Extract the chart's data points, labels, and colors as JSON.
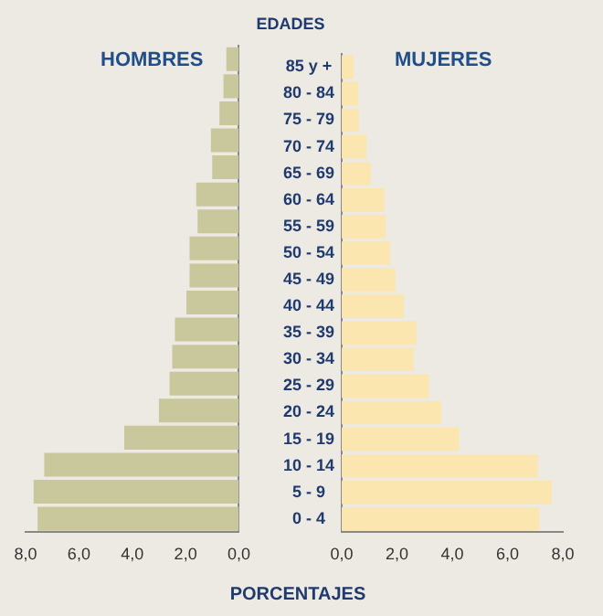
{
  "chart_data": [
    {
      "type": "bar",
      "orientation": "horizontal",
      "title": "HOMBRES",
      "xlabel": "PORCENTAJES",
      "categories": [
        null,
        null,
        null,
        null,
        null,
        null,
        null,
        null,
        null,
        null,
        null,
        null,
        null,
        null,
        null,
        null,
        null,
        null
      ],
      "values": [
        0.47,
        0.58,
        0.73,
        1.05,
        1.0,
        1.6,
        1.55,
        1.85,
        1.85,
        1.97,
        2.4,
        2.5,
        2.6,
        3.0,
        4.3,
        7.3,
        7.7,
        7.55
      ],
      "color": "#c9c89c",
      "xlim": [
        8,
        0
      ],
      "xticks": [
        {
          "value": 8,
          "label": "8,0"
        },
        {
          "value": 6,
          "label": "6,0"
        },
        {
          "value": 4,
          "label": "4,0"
        },
        {
          "value": 2,
          "label": "2,0"
        },
        {
          "value": 0,
          "label": "0,0"
        }
      ],
      "tick_labels": "x",
      "grid": false
    },
    {
      "type": "bar",
      "orientation": "horizontal",
      "title": "MUJERES",
      "ylabel": "EDADES",
      "categories": [
        "85 y +",
        "80 - 84",
        "75 - 79",
        "70 - 74",
        "65 - 69",
        "60 - 64",
        "55 - 59",
        "50 - 54",
        "45 - 49",
        "40 - 44",
        "35 - 39",
        "30 - 34",
        "25 - 29",
        "20 - 24",
        "15 - 19",
        "10 - 14",
        "5 - 9",
        "0 - 4"
      ],
      "values": [
        0.43,
        0.6,
        0.62,
        0.9,
        1.05,
        1.55,
        1.6,
        1.75,
        1.95,
        2.25,
        2.7,
        2.6,
        3.15,
        3.6,
        4.25,
        7.1,
        7.6,
        7.15
      ],
      "color": "#fbe6b0",
      "xlim": [
        0,
        8
      ],
      "xticks": [
        {
          "value": 0,
          "label": "0,0"
        },
        {
          "value": 2,
          "label": "2,0"
        },
        {
          "value": 4,
          "label": "4,0"
        },
        {
          "value": 6,
          "label": "6,0"
        },
        {
          "value": 8,
          "label": "8,0"
        }
      ],
      "grid": false
    }
  ]
}
